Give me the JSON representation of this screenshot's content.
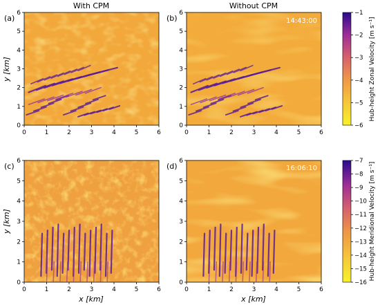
{
  "chart_data": [
    {
      "type": "heatmap",
      "panel_label": "(a)",
      "column_title": "With CPM",
      "annotation": "",
      "xlabel": "",
      "ylabel": "y [km]",
      "xlim": [
        0,
        6
      ],
      "ylim": [
        0,
        6
      ],
      "xticks": [
        "0",
        "1",
        "2",
        "3",
        "4",
        "5",
        "6"
      ],
      "yticks": [
        "0",
        "1",
        "2",
        "3",
        "4",
        "5",
        "6"
      ],
      "field": "zonal",
      "wake_sources": [
        [
          0.3,
          0.8
        ],
        [
          0.7,
          1.0
        ],
        [
          1.2,
          1.3
        ],
        [
          0.9,
          2.0
        ],
        [
          1.5,
          2.2
        ],
        [
          2.1,
          2.4
        ],
        [
          2.6,
          2.7
        ],
        [
          0.4,
          1.5
        ],
        [
          1.0,
          1.7
        ]
      ]
    },
    {
      "type": "heatmap",
      "panel_label": "(b)",
      "column_title": "Without CPM",
      "annotation": "14:43:00",
      "xlabel": "",
      "ylabel": "",
      "xlim": [
        0,
        6
      ],
      "ylim": [
        0,
        6
      ],
      "xticks": [
        "0",
        "1",
        "2",
        "3",
        "4",
        "5",
        "6"
      ],
      "yticks": [
        "0",
        "1",
        "2",
        "3",
        "4",
        "5",
        "6"
      ],
      "field": "zonal"
    },
    {
      "type": "heatmap",
      "panel_label": "(c)",
      "column_title": "",
      "annotation": "",
      "xlabel": "x [km]",
      "ylabel": "y [km]",
      "xlim": [
        0,
        6
      ],
      "ylim": [
        0,
        6
      ],
      "xticks": [
        "0",
        "1",
        "2",
        "3",
        "4",
        "5",
        "6"
      ],
      "yticks": [
        "0",
        "1",
        "2",
        "3",
        "4",
        "5",
        "6"
      ],
      "field": "meridional"
    },
    {
      "type": "heatmap",
      "panel_label": "(d)",
      "column_title": "",
      "annotation": "16:06:10",
      "xlabel": "x [km]",
      "ylabel": "",
      "xlim": [
        0,
        6
      ],
      "ylim": [
        0,
        6
      ],
      "xticks": [
        "0",
        "1",
        "2",
        "3",
        "4",
        "5",
        "6"
      ],
      "yticks": [
        "0",
        "1",
        "2",
        "3",
        "4",
        "5",
        "6"
      ],
      "field": "meridional"
    }
  ],
  "colorbars": [
    {
      "label": "Hub-height Zonal Velocity [m s⁻¹]",
      "min": -6,
      "max": -1,
      "ticks": [
        "−1",
        "−2",
        "−3",
        "−4",
        "−5",
        "−6"
      ]
    },
    {
      "label": "Hub-height Meridional Velocity [m s⁻¹]",
      "min": -16,
      "max": -7,
      "ticks": [
        "−7",
        "−8",
        "−9",
        "−10",
        "−11",
        "−12",
        "−13",
        "−14",
        "−15",
        "−16"
      ]
    }
  ],
  "colormap": [
    "#2a0c8e",
    "#6a1a9e",
    "#a83a8a",
    "#d9636a",
    "#f1973f",
    "#f4c33a",
    "#f4ee2f"
  ],
  "background_color": "#f2a93c",
  "wake_color": "#5a1d95"
}
